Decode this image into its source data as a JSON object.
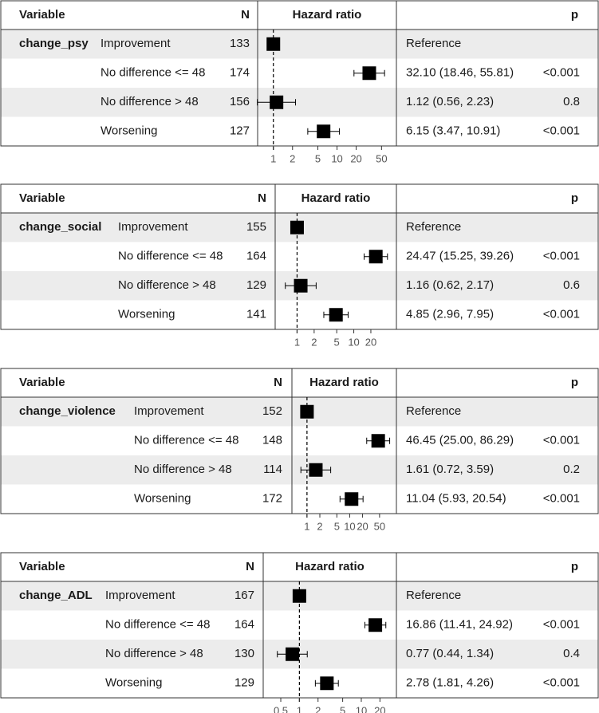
{
  "chart_data": [
    {
      "type": "forest",
      "variable": "change_psy",
      "header": {
        "variable": "Variable",
        "n": "N",
        "hr": "Hazard ratio",
        "p": "p"
      },
      "xscale": "log",
      "xlim": [
        0.8,
        70
      ],
      "ticks": [
        1,
        2,
        5,
        10,
        20,
        50
      ],
      "tick_labels": [
        "1",
        "2",
        "5",
        "10",
        "20",
        "50"
      ],
      "rows": [
        {
          "level": "Improvement",
          "n": "133",
          "hr": 1,
          "lo": null,
          "hi": null,
          "ci_text": "Reference",
          "p": ""
        },
        {
          "level": "No difference <= 48",
          "n": "174",
          "hr": 32.1,
          "lo": 18.46,
          "hi": 55.81,
          "ci_text": "32.10 (18.46, 55.81)",
          "p": "<0.001"
        },
        {
          "level": "No difference > 48",
          "n": "156",
          "hr": 1.12,
          "lo": 0.56,
          "hi": 2.23,
          "ci_text": "1.12 (0.56, 2.23)",
          "p": "0.8"
        },
        {
          "level": "Worsening",
          "n": "127",
          "hr": 6.15,
          "lo": 3.47,
          "hi": 10.91,
          "ci_text": "6.15 (3.47, 10.91)",
          "p": "<0.001"
        }
      ]
    },
    {
      "type": "forest",
      "variable": "change_social",
      "header": {
        "variable": "Variable",
        "n": "N",
        "hr": "Hazard ratio",
        "p": "p"
      },
      "xscale": "log",
      "xlim": [
        0.55,
        45
      ],
      "ticks": [
        1,
        2,
        5,
        10,
        20
      ],
      "tick_labels": [
        "1",
        "2",
        "5",
        "10",
        "20"
      ],
      "rows": [
        {
          "level": "Improvement",
          "n": "155",
          "hr": 1,
          "lo": null,
          "hi": null,
          "ci_text": "Reference",
          "p": ""
        },
        {
          "level": "No difference <= 48",
          "n": "164",
          "hr": 24.47,
          "lo": 15.25,
          "hi": 39.26,
          "ci_text": "24.47 (15.25, 39.26)",
          "p": "<0.001"
        },
        {
          "level": "No difference > 48",
          "n": "129",
          "hr": 1.16,
          "lo": 0.62,
          "hi": 2.17,
          "ci_text": "1.16 (0.62, 2.17)",
          "p": "0.6"
        },
        {
          "level": "Worsening",
          "n": "141",
          "hr": 4.85,
          "lo": 2.96,
          "hi": 7.95,
          "ci_text": "4.85 (2.96, 7.95)",
          "p": "<0.001"
        }
      ]
    },
    {
      "type": "forest",
      "variable": "change_violence",
      "header": {
        "variable": "Variable",
        "n": "N",
        "hr": "Hazard ratio",
        "p": "p"
      },
      "xscale": "log",
      "xlim": [
        0.6,
        100
      ],
      "ticks": [
        1,
        2,
        5,
        10,
        20,
        50
      ],
      "tick_labels": [
        "1",
        "2",
        "5",
        "10",
        "20",
        "50"
      ],
      "rows": [
        {
          "level": "Improvement",
          "n": "152",
          "hr": 1,
          "lo": null,
          "hi": null,
          "ci_text": "Reference",
          "p": ""
        },
        {
          "level": "No difference <= 48",
          "n": "148",
          "hr": 46.45,
          "lo": 25.0,
          "hi": 86.29,
          "ci_text": "46.45 (25.00, 86.29)",
          "p": "<0.001"
        },
        {
          "level": "No difference > 48",
          "n": "114",
          "hr": 1.61,
          "lo": 0.72,
          "hi": 3.59,
          "ci_text": "1.61 (0.72, 3.59)",
          "p": "0.2"
        },
        {
          "level": "Worsening",
          "n": "172",
          "hr": 11.04,
          "lo": 5.93,
          "hi": 20.54,
          "ci_text": "11.04 (5.93, 20.54)",
          "p": "<0.001"
        }
      ]
    },
    {
      "type": "forest",
      "variable": "change_ADL",
      "header": {
        "variable": "Variable",
        "n": "N",
        "hr": "Hazard ratio",
        "p": "p"
      },
      "xscale": "log",
      "xlim": [
        0.35,
        30
      ],
      "ticks": [
        0.5,
        1,
        2,
        5,
        10,
        20
      ],
      "tick_labels": [
        "0.5",
        "1",
        "2",
        "5",
        "10",
        "20"
      ],
      "rows": [
        {
          "level": "Improvement",
          "n": "167",
          "hr": 1,
          "lo": null,
          "hi": null,
          "ci_text": "Reference",
          "p": ""
        },
        {
          "level": "No difference <= 48",
          "n": "164",
          "hr": 16.86,
          "lo": 11.41,
          "hi": 24.92,
          "ci_text": "16.86 (11.41, 24.92)",
          "p": "<0.001"
        },
        {
          "level": "No difference > 48",
          "n": "130",
          "hr": 0.77,
          "lo": 0.44,
          "hi": 1.34,
          "ci_text": "0.77 (0.44, 1.34)",
          "p": "0.4"
        },
        {
          "level": "Worsening",
          "n": "129",
          "hr": 2.78,
          "lo": 1.81,
          "hi": 4.26,
          "ci_text": "2.78 (1.81, 4.26)",
          "p": "<0.001"
        }
      ]
    }
  ],
  "colors": {
    "stripe": "#ececec",
    "marker": "#000000",
    "border": "#333333",
    "tick_text": "#555555"
  }
}
